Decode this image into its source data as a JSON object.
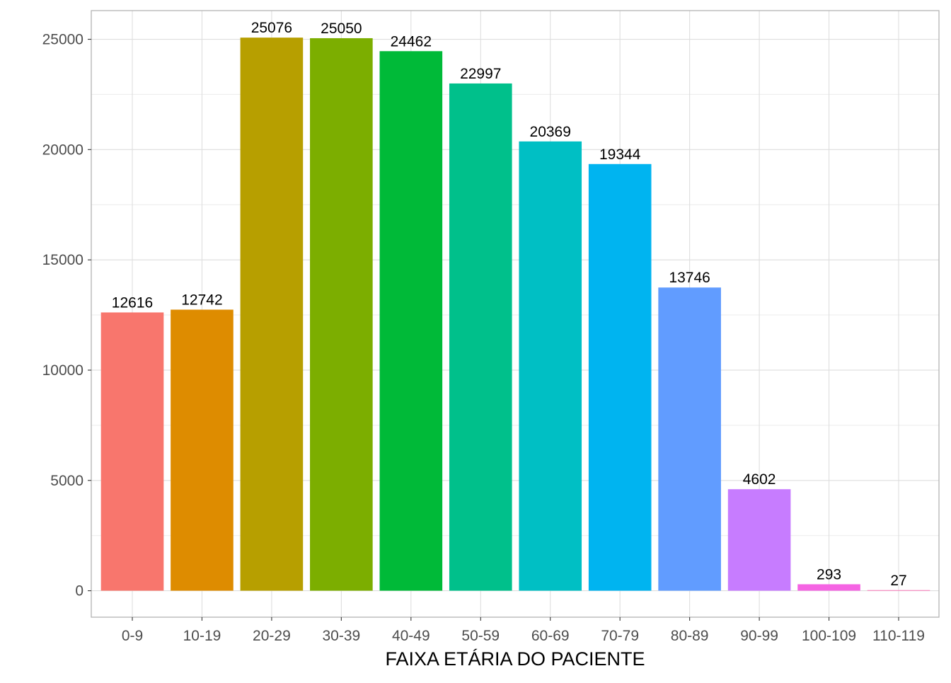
{
  "chart_data": {
    "type": "bar",
    "title": "",
    "xlabel": "FAIXA ETÁRIA DO PACIENTE",
    "ylabel": "",
    "categories": [
      "0-9",
      "10-19",
      "20-29",
      "30-39",
      "40-49",
      "50-59",
      "60-69",
      "70-79",
      "80-89",
      "90-99",
      "100-109",
      "110-119"
    ],
    "values": [
      12616,
      12742,
      25076,
      25050,
      24462,
      22997,
      20369,
      19344,
      13746,
      4602,
      293,
      27
    ],
    "data_labels": [
      "12616",
      "12742",
      "25076",
      "25050",
      "24462",
      "22997",
      "20369",
      "19344",
      "13746",
      "4602",
      "293",
      "27"
    ],
    "colors": [
      "#F8766D",
      "#DE8C00",
      "#B79F00",
      "#7CAE00",
      "#00BA38",
      "#00C08B",
      "#00BFC4",
      "#00B4F0",
      "#619CFF",
      "#C77CFF",
      "#F564E3",
      "#FF64B0"
    ],
    "ylim": [
      -1200,
      26300
    ],
    "yticks": [
      0,
      5000,
      10000,
      15000,
      20000,
      25000
    ],
    "ytick_labels": [
      "0",
      "5000",
      "10000",
      "15000",
      "20000",
      "25000"
    ],
    "grid": true,
    "legend": "none"
  }
}
